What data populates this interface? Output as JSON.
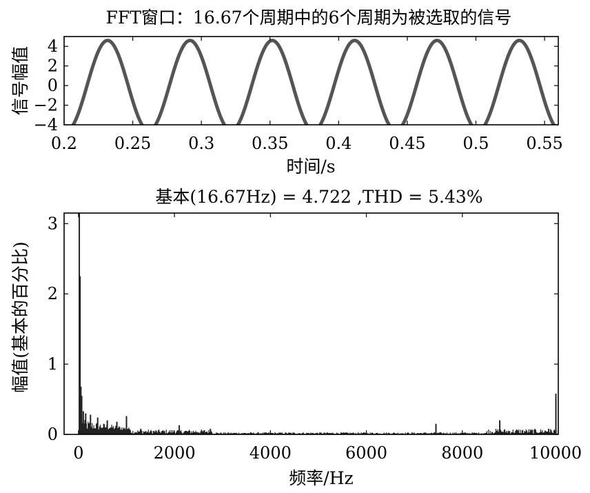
{
  "chart_data": [
    {
      "type": "line",
      "title": "FFT窗口：16.67个周期中的6个周期为被选取的信号",
      "xlabel": "时间/s",
      "ylabel": "信号幅值",
      "xlim": [
        0.2,
        0.56
      ],
      "ylim": [
        -4,
        5
      ],
      "xticks": [
        "0.2",
        "0.25",
        "0.3",
        "0.35",
        "0.4",
        "0.45",
        "0.5",
        "0.55"
      ],
      "yticks": [
        "4",
        "2",
        "0",
        "−2",
        "−4"
      ],
      "series": [
        {
          "signal": "sine",
          "amplitude": 4.6,
          "frequency_hz": 16.67,
          "peak_time_s": 0.2317,
          "x_range": [
            0.2,
            0.56
          ],
          "color": "#555555"
        }
      ],
      "grid": false
    },
    {
      "type": "bar",
      "title": "基本(16.67Hz) = 4.722 ,THD = 5.43%",
      "xlabel": "频率/Hz",
      "ylabel": "幅值(基本的百分比)",
      "xlim": [
        -300,
        10000
      ],
      "ylim": [
        0,
        3.15
      ],
      "xticks": [
        "0",
        "2000",
        "4000",
        "6000",
        "8000",
        "10000"
      ],
      "yticks": [
        "3",
        "2",
        "1",
        "0"
      ],
      "peaks": [
        {
          "x": 17,
          "y": 3.15
        },
        {
          "x": 33,
          "y": 2.25
        },
        {
          "x": 50,
          "y": 0.68
        },
        {
          "x": 67,
          "y": 0.55
        },
        {
          "x": 100,
          "y": 0.33
        },
        {
          "x": 150,
          "y": 0.3
        },
        {
          "x": 250,
          "y": 0.28
        },
        {
          "x": 400,
          "y": 0.24
        },
        {
          "x": 600,
          "y": 0.2
        },
        {
          "x": 800,
          "y": 0.18
        },
        {
          "x": 1000,
          "y": 0.26
        },
        {
          "x": 1300,
          "y": 0.08
        },
        {
          "x": 2100,
          "y": 0.13
        },
        {
          "x": 2750,
          "y": 0.08
        },
        {
          "x": 7450,
          "y": 0.15
        },
        {
          "x": 8780,
          "y": 0.2
        },
        {
          "x": 9800,
          "y": 0.08
        },
        {
          "x": 9950,
          "y": 0.58
        }
      ],
      "color": "#222222",
      "grid": false
    }
  ]
}
